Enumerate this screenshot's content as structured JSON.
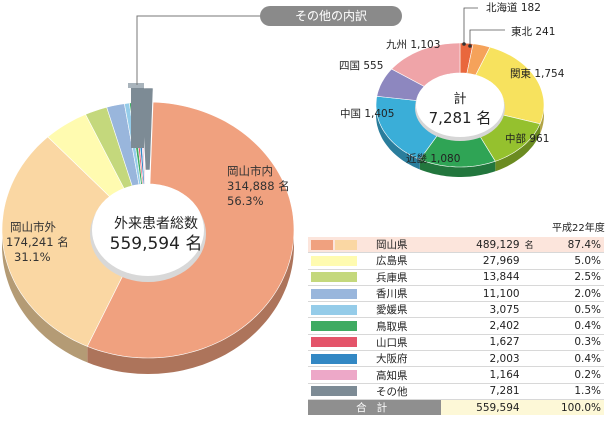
{
  "colors": {
    "okayama_city": "#f0a17f",
    "okayama_outside": "#fad7a3",
    "other_pref_bar": "#7d8b95",
    "banner": "#8a8a8a"
  },
  "chart_data": [
    {
      "type": "pie",
      "title": "外来患者総数",
      "total_value": "559,594",
      "total_unit": "名",
      "slices": [
        {
          "name": "岡山市内",
          "value": 314888,
          "value_label": "314,888",
          "unit": "名",
          "percent": "56.3%",
          "color": "#f0a17f"
        },
        {
          "name": "岡山市外",
          "value": 174241,
          "value_label": "174,241",
          "unit": "名",
          "percent": "31.1%",
          "color": "#fad7a3"
        },
        {
          "name": "広島県",
          "value": 27969,
          "color": "#fffbb0"
        },
        {
          "name": "兵庫県",
          "value": 13844,
          "color": "#c4d87c"
        },
        {
          "name": "香川県",
          "value": 11100,
          "color": "#99b6dc"
        },
        {
          "name": "愛媛県",
          "value": 3075,
          "color": "#95cce9"
        },
        {
          "name": "鳥取県",
          "value": 2402,
          "color": "#3fab62"
        },
        {
          "name": "山口県",
          "value": 1627,
          "color": "#e4546a"
        },
        {
          "name": "大阪府",
          "value": 2003,
          "color": "#3388c4"
        },
        {
          "name": "高知県",
          "value": 1164,
          "color": "#eda8c8"
        },
        {
          "name": "その他",
          "value": 7281,
          "color": "#7d8b95"
        }
      ]
    },
    {
      "type": "pie",
      "title": "その他の内訳",
      "center_label": "計",
      "center_value": "7,281",
      "center_unit": "名",
      "slices": [
        {
          "name": "北海道",
          "value": 182,
          "value_label": "182",
          "color": "#e9673d"
        },
        {
          "name": "東北",
          "value": 241,
          "value_label": "241",
          "color": "#f5a25a"
        },
        {
          "name": "関東",
          "value": 1754,
          "value_label": "1,754",
          "color": "#f7e25e"
        },
        {
          "name": "中部",
          "value": 961,
          "value_label": "961",
          "color": "#95c12e"
        },
        {
          "name": "近畿",
          "value": 1080,
          "value_label": "1,080",
          "color": "#2fa455"
        },
        {
          "name": "中国",
          "value": 1405,
          "value_label": "1,405",
          "color": "#3aaed8"
        },
        {
          "name": "四国",
          "value": 555,
          "value_label": "555",
          "color": "#8d87bf"
        },
        {
          "name": "九州",
          "value": 1103,
          "value_label": "1,103",
          "color": "#efa4a8"
        }
      ]
    },
    {
      "type": "table",
      "caption": "平成22年度",
      "unit": "名",
      "rows": [
        {
          "name": "岡山県",
          "count": "489,129",
          "percent": "87.4%",
          "colors": [
            "#f0a17f",
            "#fad7a3"
          ]
        },
        {
          "name": "広島県",
          "count": "27,969",
          "percent": "5.0%",
          "colors": [
            "#fffbb0"
          ]
        },
        {
          "name": "兵庫県",
          "count": "13,844",
          "percent": "2.5%",
          "colors": [
            "#c4d87c"
          ]
        },
        {
          "name": "香川県",
          "count": "11,100",
          "percent": "2.0%",
          "colors": [
            "#99b6dc"
          ]
        },
        {
          "name": "愛媛県",
          "count": "3,075",
          "percent": "0.5%",
          "colors": [
            "#95cce9"
          ]
        },
        {
          "name": "鳥取県",
          "count": "2,402",
          "percent": "0.4%",
          "colors": [
            "#3fab62"
          ]
        },
        {
          "name": "山口県",
          "count": "1,627",
          "percent": "0.3%",
          "colors": [
            "#e4546a"
          ]
        },
        {
          "name": "大阪府",
          "count": "2,003",
          "percent": "0.4%",
          "colors": [
            "#3388c4"
          ]
        },
        {
          "name": "高知県",
          "count": "1,164",
          "percent": "0.2%",
          "colors": [
            "#eda8c8"
          ]
        },
        {
          "name": "その他",
          "count": "7,281",
          "percent": "1.3%",
          "colors": [
            "#7d8b95"
          ]
        }
      ],
      "total": {
        "name": "合計",
        "count": "559,594",
        "percent": "100.0%"
      }
    }
  ]
}
